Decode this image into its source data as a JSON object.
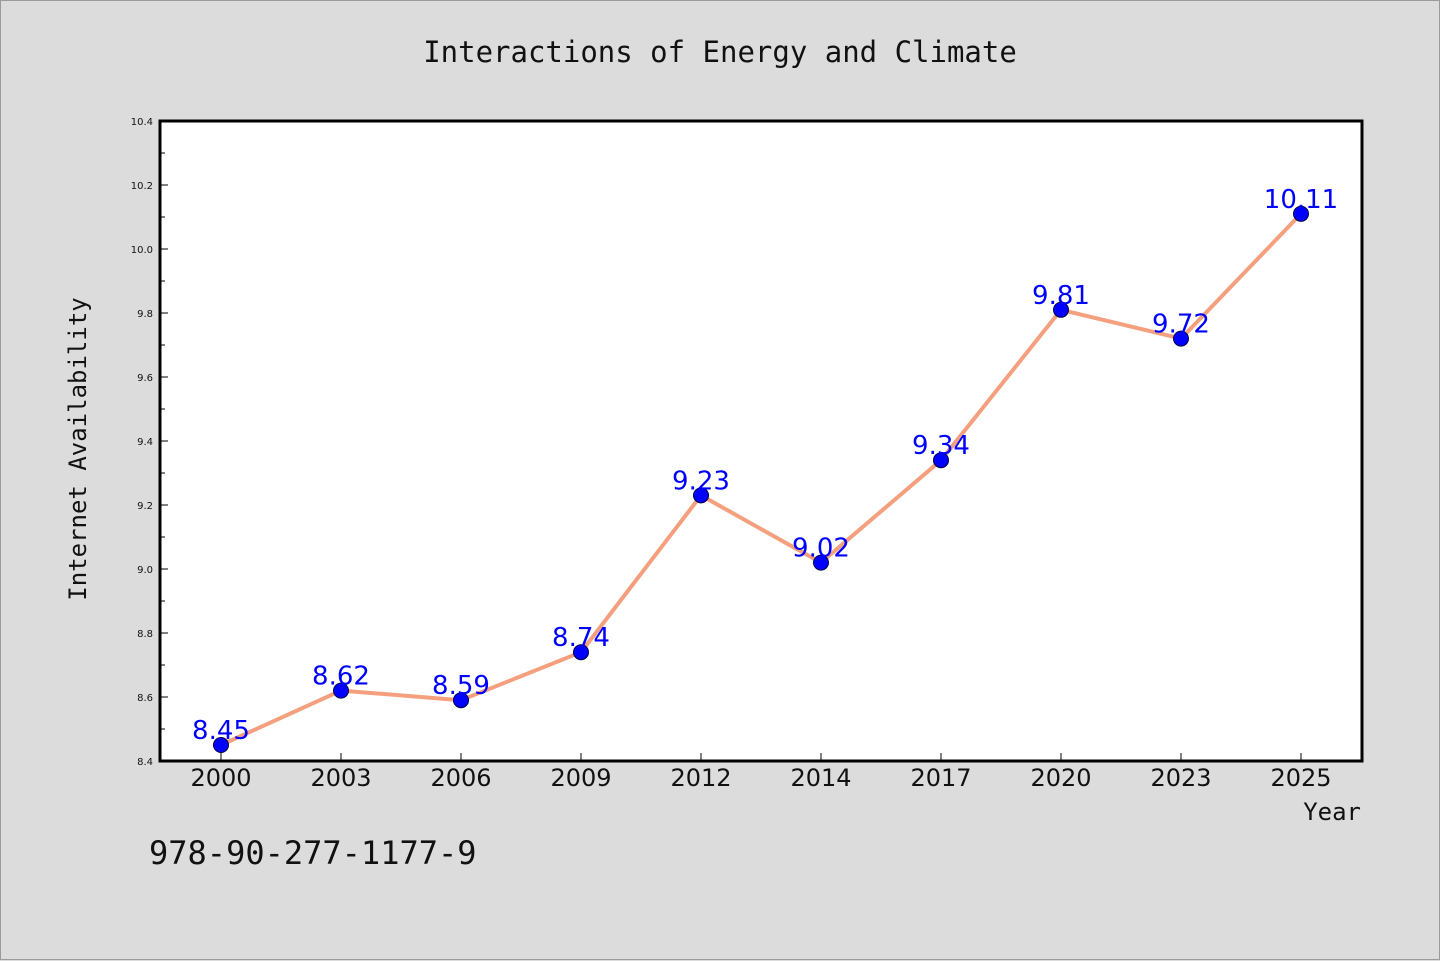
{
  "chart_data": {
    "type": "line",
    "title": "Interactions of Energy and Climate",
    "xlabel": "Year",
    "ylabel": "Internet Availability",
    "categories": [
      "2000",
      "2003",
      "2006",
      "2009",
      "2012",
      "2014",
      "2017",
      "2020",
      "2023",
      "2025"
    ],
    "series": [
      {
        "values": [
          8.45,
          8.62,
          8.59,
          8.74,
          9.23,
          9.02,
          9.34,
          9.81,
          9.72,
          10.11
        ]
      }
    ],
    "ylim": [
      8.4,
      10.4
    ],
    "yticks": [
      "8.4",
      "8.6",
      "8.8",
      "9.0",
      "9.2",
      "9.4",
      "9.6",
      "9.8",
      "10.0",
      "10.2",
      "10.4"
    ],
    "data_labels": [
      "8.45",
      "8.62",
      "8.59",
      "8.74",
      "9.23",
      "9.02",
      "9.34",
      "9.81",
      "9.72",
      "10.11"
    ],
    "grid": false,
    "legend": "none",
    "line_color": "#f4a07e",
    "marker_color": "#0000ff",
    "label_color": "#0000ff"
  },
  "footer": {
    "code": "978-90-277-1177-9"
  }
}
